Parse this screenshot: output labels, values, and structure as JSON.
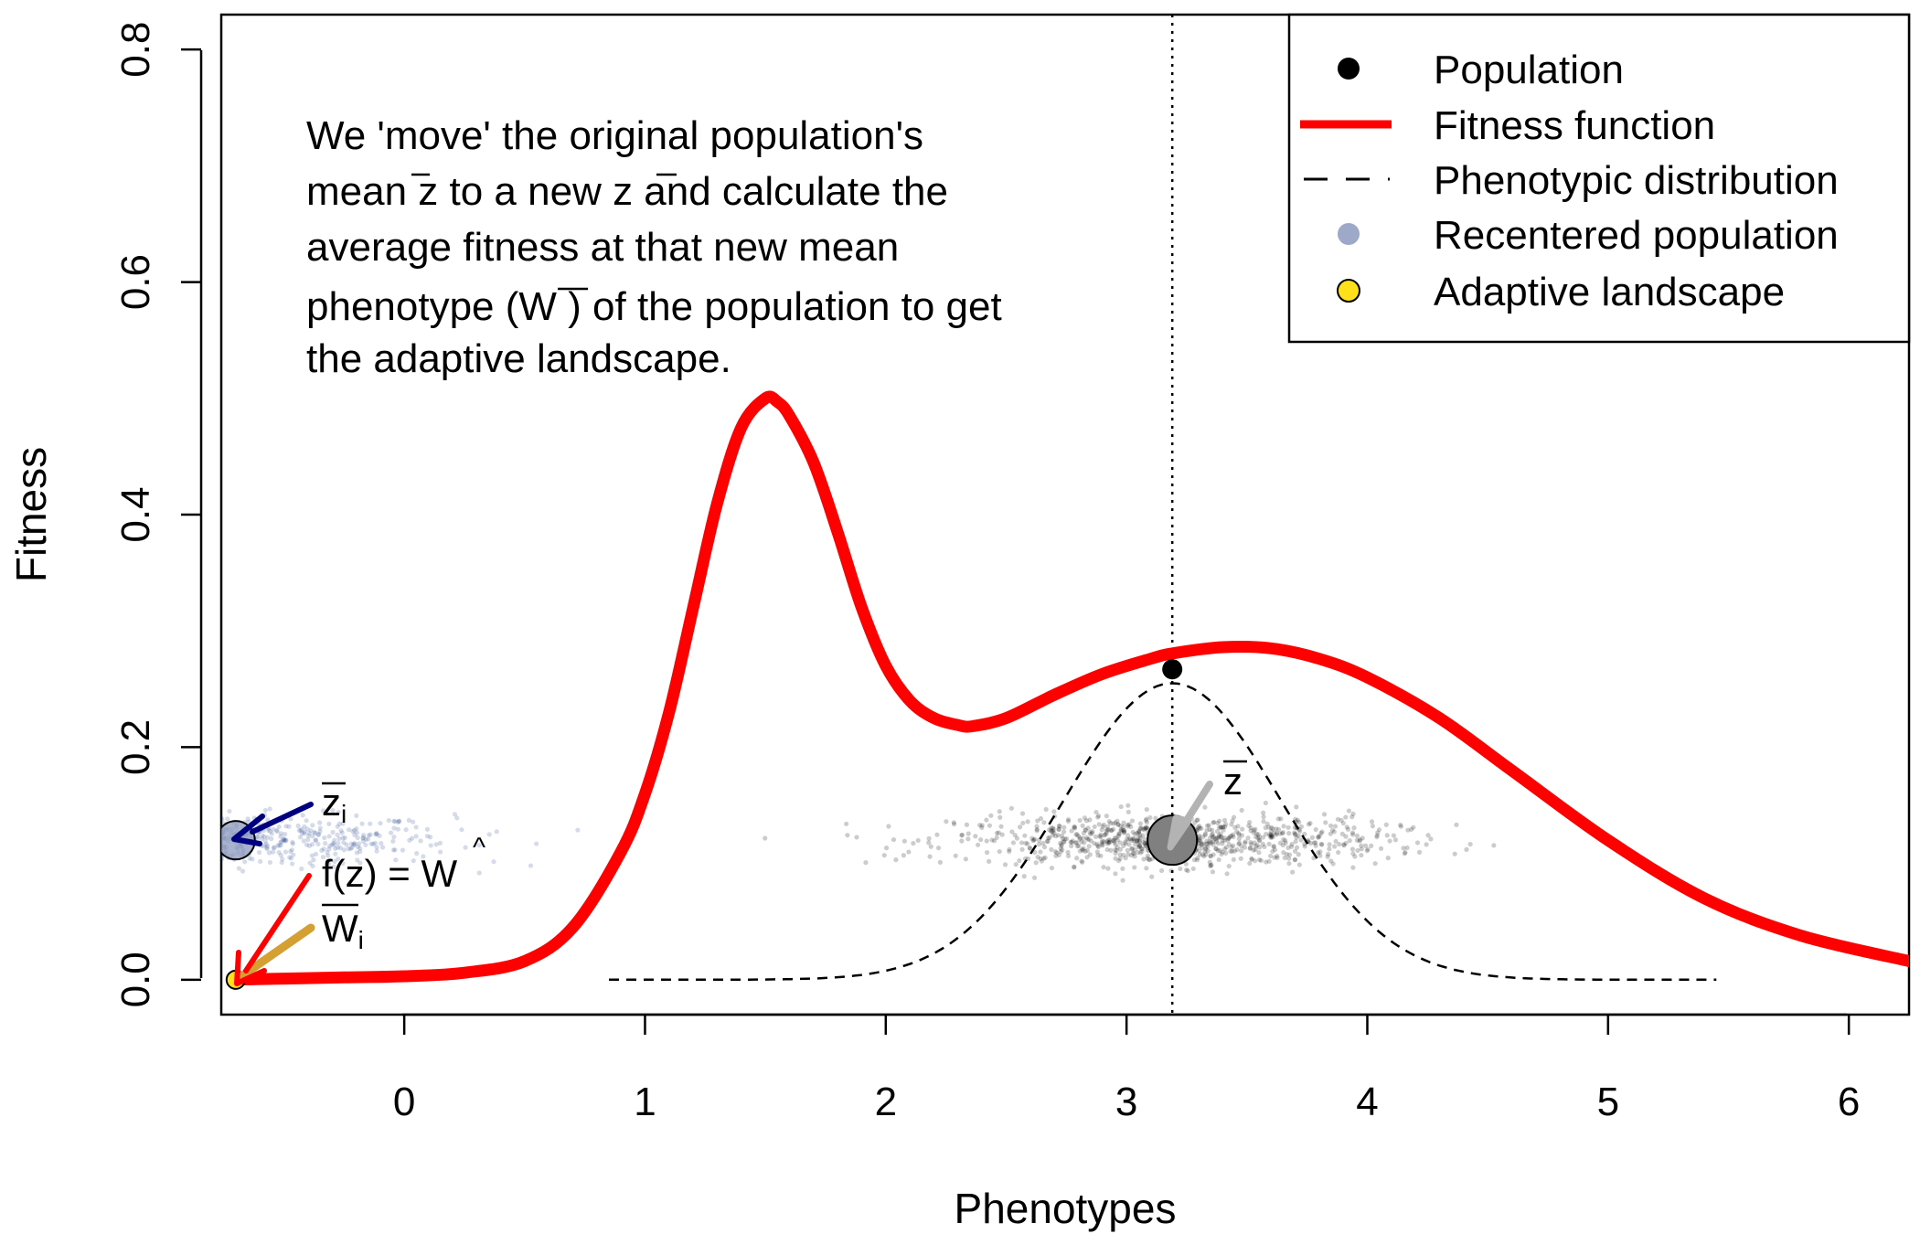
{
  "chart_data": {
    "type": "line",
    "xlabel": "Phenotypes",
    "ylabel": "Fitness",
    "xlim": [
      -0.76,
      6.25
    ],
    "ylim": [
      -0.03,
      0.83
    ],
    "x_ticks": [
      "0",
      "1",
      "2",
      "3",
      "4",
      "5",
      "6"
    ],
    "y_ticks": [
      "0.0",
      "0.2",
      "0.4",
      "0.6",
      "0.8"
    ],
    "grid": false,
    "legend_position": "top-right",
    "legend": [
      {
        "label": "Population",
        "marker": "filled-circle",
        "color": "#000000"
      },
      {
        "label": "Fitness function",
        "marker": "thick-line",
        "color": "#ff0000"
      },
      {
        "label": "Phenotypic distribution",
        "marker": "dashed-line",
        "color": "#000000"
      },
      {
        "label": "Recentered population",
        "marker": "circle",
        "color": "#8d99be"
      },
      {
        "label": "Adaptive landscape",
        "marker": "circle",
        "color": "#ffe019"
      }
    ],
    "fitness_function": {
      "x": [
        -0.7,
        -0.5,
        -0.25,
        0.0,
        0.25,
        0.5,
        0.7,
        0.9,
        1.0,
        1.1,
        1.2,
        1.3,
        1.4,
        1.5,
        1.55,
        1.6,
        1.7,
        1.8,
        1.9,
        2.0,
        2.1,
        2.2,
        2.3,
        2.36,
        2.5,
        2.7,
        2.9,
        3.1,
        3.2,
        3.4,
        3.6,
        3.8,
        4.0,
        4.3,
        4.6,
        5.0,
        5.4,
        5.8,
        6.25
      ],
      "y": [
        0.0,
        0.001,
        0.002,
        0.003,
        0.006,
        0.016,
        0.045,
        0.11,
        0.16,
        0.23,
        0.32,
        0.41,
        0.475,
        0.5,
        0.497,
        0.485,
        0.445,
        0.385,
        0.32,
        0.27,
        0.24,
        0.225,
        0.219,
        0.218,
        0.225,
        0.245,
        0.263,
        0.276,
        0.281,
        0.286,
        0.285,
        0.276,
        0.26,
        0.225,
        0.18,
        0.12,
        0.07,
        0.038,
        0.016
      ],
      "color": "#ff0000"
    },
    "phenotypic_distribution": {
      "mean": 3.19,
      "sd": 0.45,
      "peak": 0.255,
      "x_range": [
        0.85,
        5.45
      ],
      "color": "#000000"
    },
    "population_mean": {
      "x": 3.19,
      "y": 0.267
    },
    "mean_line_x": 3.19,
    "population_point": {
      "x": 3.19,
      "y": 0.12
    },
    "recentered_point": {
      "x": -0.7,
      "y": 0.12
    },
    "adaptive_landscape_point": {
      "x": -0.7,
      "y": 0.0
    },
    "population_cloud": {
      "center_x": 3.19,
      "sd_x": 0.45,
      "center_y": 0.12,
      "color": "#000000"
    },
    "recentered_cloud": {
      "center_x": -0.7,
      "sd_x": 0.45,
      "center_y": 0.12,
      "color": "#2e4a8f"
    },
    "annotation_lines": [
      "We 'move' the original population's",
      "mean z to a new z and calculate the",
      "average fitness at that new mean",
      "phenotype (W ) of the population to get",
      "the adaptive landscape."
    ],
    "label_zbar": "z",
    "label_zbar_i": "z",
    "label_subscript_i": "i",
    "label_fz": "f(z) = W",
    "label_wbar_i": "W",
    "colors": {
      "fitness": "#ff0000",
      "arrow_recentered": "#000080",
      "arrow_fitness": "#ff0000",
      "arrow_landscape": "#d4a032",
      "arrow_mean": "#b3b3b3"
    }
  }
}
